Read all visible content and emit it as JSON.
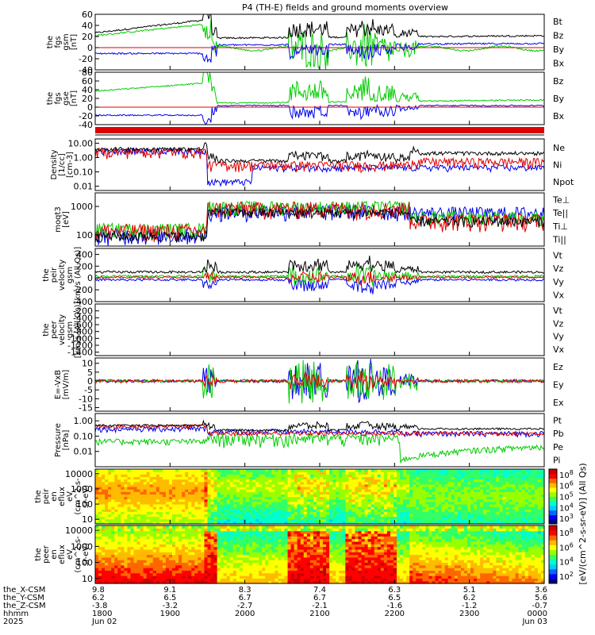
{
  "title": "P4 (TH-E) fields and ground moments overview",
  "colors": {
    "black": "#000000",
    "red": "#e00000",
    "green": "#00cc00",
    "blue": "#0000ee",
    "blue_dark": "#0000aa",
    "green_light": "#22cc22"
  },
  "chart_data": [
    {
      "type": "line",
      "panel": "fgs_gsm",
      "ylabel": [
        "the",
        "fgs",
        "gsm",
        "[nT]"
      ],
      "ylim": [
        -40,
        60
      ],
      "yticks": [
        "60",
        "40",
        "20",
        "0",
        "-20",
        "-40"
      ],
      "legend": [
        {
          "name": "Bt",
          "color": "black"
        },
        {
          "name": "Bz",
          "color": "red"
        },
        {
          "name": "By",
          "color": "green"
        },
        {
          "name": "Bx",
          "color": "blue"
        }
      ]
    },
    {
      "type": "line",
      "panel": "fgs_gse",
      "ylabel": [
        "the",
        "fgs",
        "gse",
        "[nT]"
      ],
      "ylim": [
        -40,
        80
      ],
      "yticks": [
        "80",
        "60",
        "40",
        "20",
        "0",
        "-20",
        "-40"
      ],
      "legend": [
        {
          "name": "Bz",
          "color": "red"
        },
        {
          "name": "By",
          "color": "green"
        },
        {
          "name": "Bx",
          "color": "blue"
        }
      ]
    },
    {
      "type": "line",
      "panel": "density",
      "ylabel": [
        "Density",
        "[1/cc]",
        "[cm-3]"
      ],
      "yscale": "log",
      "ylim": [
        0.005,
        20
      ],
      "yticks": [
        "10.00",
        "1.00",
        "0.10",
        "0.01"
      ],
      "legend": [
        {
          "name": "Ne",
          "color": "red"
        },
        {
          "name": "Ni",
          "color": "black"
        },
        {
          "name": "Npot",
          "color": "blue"
        }
      ]
    },
    {
      "type": "line",
      "panel": "temperature",
      "ylabel": [
        "moqt3",
        "[eV]"
      ],
      "yscale": "log",
      "ylim": [
        40,
        3000
      ],
      "yticks": [
        "1000",
        "100"
      ],
      "legend": [
        {
          "name": "Te⊥",
          "color": "red"
        },
        {
          "name": "Te||",
          "color": "black"
        },
        {
          "name": "Ti⊥",
          "color": "green"
        },
        {
          "name": "Ti||",
          "color": "green"
        }
      ]
    },
    {
      "type": "line",
      "panel": "peir_velocity",
      "ylabel": [
        "the",
        "peir",
        "velocity",
        "gsm",
        "[km/s (All Qs)]"
      ],
      "ylim": [
        -400,
        500
      ],
      "yticks": [
        "400",
        "200",
        "0",
        "-200",
        "-400"
      ],
      "legend": [
        {
          "name": "Vt",
          "color": "black"
        },
        {
          "name": "Vz",
          "color": "red"
        },
        {
          "name": "Vy",
          "color": "green"
        },
        {
          "name": "Vx",
          "color": "blue"
        }
      ]
    },
    {
      "type": "line",
      "panel": "peer_velocity",
      "ylabel": [
        "the",
        "peer",
        "velocity",
        "gsm",
        "[km/s (All Qs)]"
      ],
      "ylim": [
        -1500,
        0
      ],
      "yticks": [
        "-200",
        "-400",
        "-600",
        "-800",
        "-1000",
        "-1200",
        "-1400"
      ],
      "legend": [
        {
          "name": "Vt",
          "color": "black"
        },
        {
          "name": "Vz",
          "color": "red"
        },
        {
          "name": "Vy",
          "color": "green"
        },
        {
          "name": "Vx",
          "color": "blue"
        }
      ]
    },
    {
      "type": "line",
      "panel": "e_field",
      "ylabel": [
        "E=-VxB",
        "[mV/m]"
      ],
      "ylim": [
        -17,
        13
      ],
      "yticks": [
        "10",
        "5",
        "0",
        "-5",
        "-10",
        "-15"
      ],
      "legend": [
        {
          "name": "Ez",
          "color": "red"
        },
        {
          "name": "Ey",
          "color": "green"
        },
        {
          "name": "Ex",
          "color": "blue"
        }
      ]
    },
    {
      "type": "line",
      "panel": "pressure",
      "ylabel": [
        "Pressure",
        "[nPa]"
      ],
      "yscale": "log",
      "ylim": [
        0.001,
        3
      ],
      "yticks": [
        "1.00",
        "0.10",
        "0.01"
      ],
      "legend": [
        {
          "name": "Pt",
          "color": "black"
        },
        {
          "name": "Pb",
          "color": "red"
        },
        {
          "name": "Pe",
          "color": "green"
        },
        {
          "name": "Pi",
          "color": "blue"
        }
      ]
    },
    {
      "type": "heatmap",
      "panel": "peir_spectrogram",
      "ylabel": [
        "the",
        "peir",
        "en",
        "eflux",
        "eV",
        "(cm^2-s-",
        "sr-eV)"
      ],
      "yscale": "log",
      "yticks": [
        "10000",
        "1000",
        "100",
        "10"
      ],
      "colorbar_ticks": [
        "10^8",
        "10^6",
        "10^5",
        "10^4",
        "10^3"
      ]
    },
    {
      "type": "heatmap",
      "panel": "peer_spectrogram",
      "ylabel": [
        "the",
        "peer",
        "en",
        "eflux",
        "eV",
        "(cm^2-s-",
        "sr-eV)"
      ],
      "yscale": "log",
      "yticks": [
        "10000",
        "1000",
        "100",
        "10"
      ],
      "colorbar_ticks": [
        "10^8",
        "10^6",
        "10^4",
        "10^2"
      ],
      "colorbar_label": "[eV/(cm^2-s-sr-eV)] (All Qs)"
    }
  ],
  "xaxis": {
    "rows": [
      {
        "label": "the_X-CSM",
        "values": [
          "9.8",
          "9.1",
          "8.3",
          "7.4",
          "6.3",
          "5.1",
          "3.6"
        ]
      },
      {
        "label": "the_Y-CSM",
        "values": [
          "6.2",
          "6.5",
          "6.7",
          "6.7",
          "6.5",
          "6.2",
          "5.6"
        ]
      },
      {
        "label": "the_Z-CSM",
        "values": [
          "-3.8",
          "-3.2",
          "-2.7",
          "-2.1",
          "-1.6",
          "-1.2",
          "-0.7"
        ]
      },
      {
        "label": "hhmm",
        "values": [
          "1800",
          "1900",
          "2000",
          "2100",
          "2200",
          "2300",
          "0000"
        ]
      },
      {
        "label": "2025",
        "values": [
          "Jun 02",
          "",
          "",
          "",
          "",
          "",
          "Jun 03"
        ]
      }
    ]
  }
}
